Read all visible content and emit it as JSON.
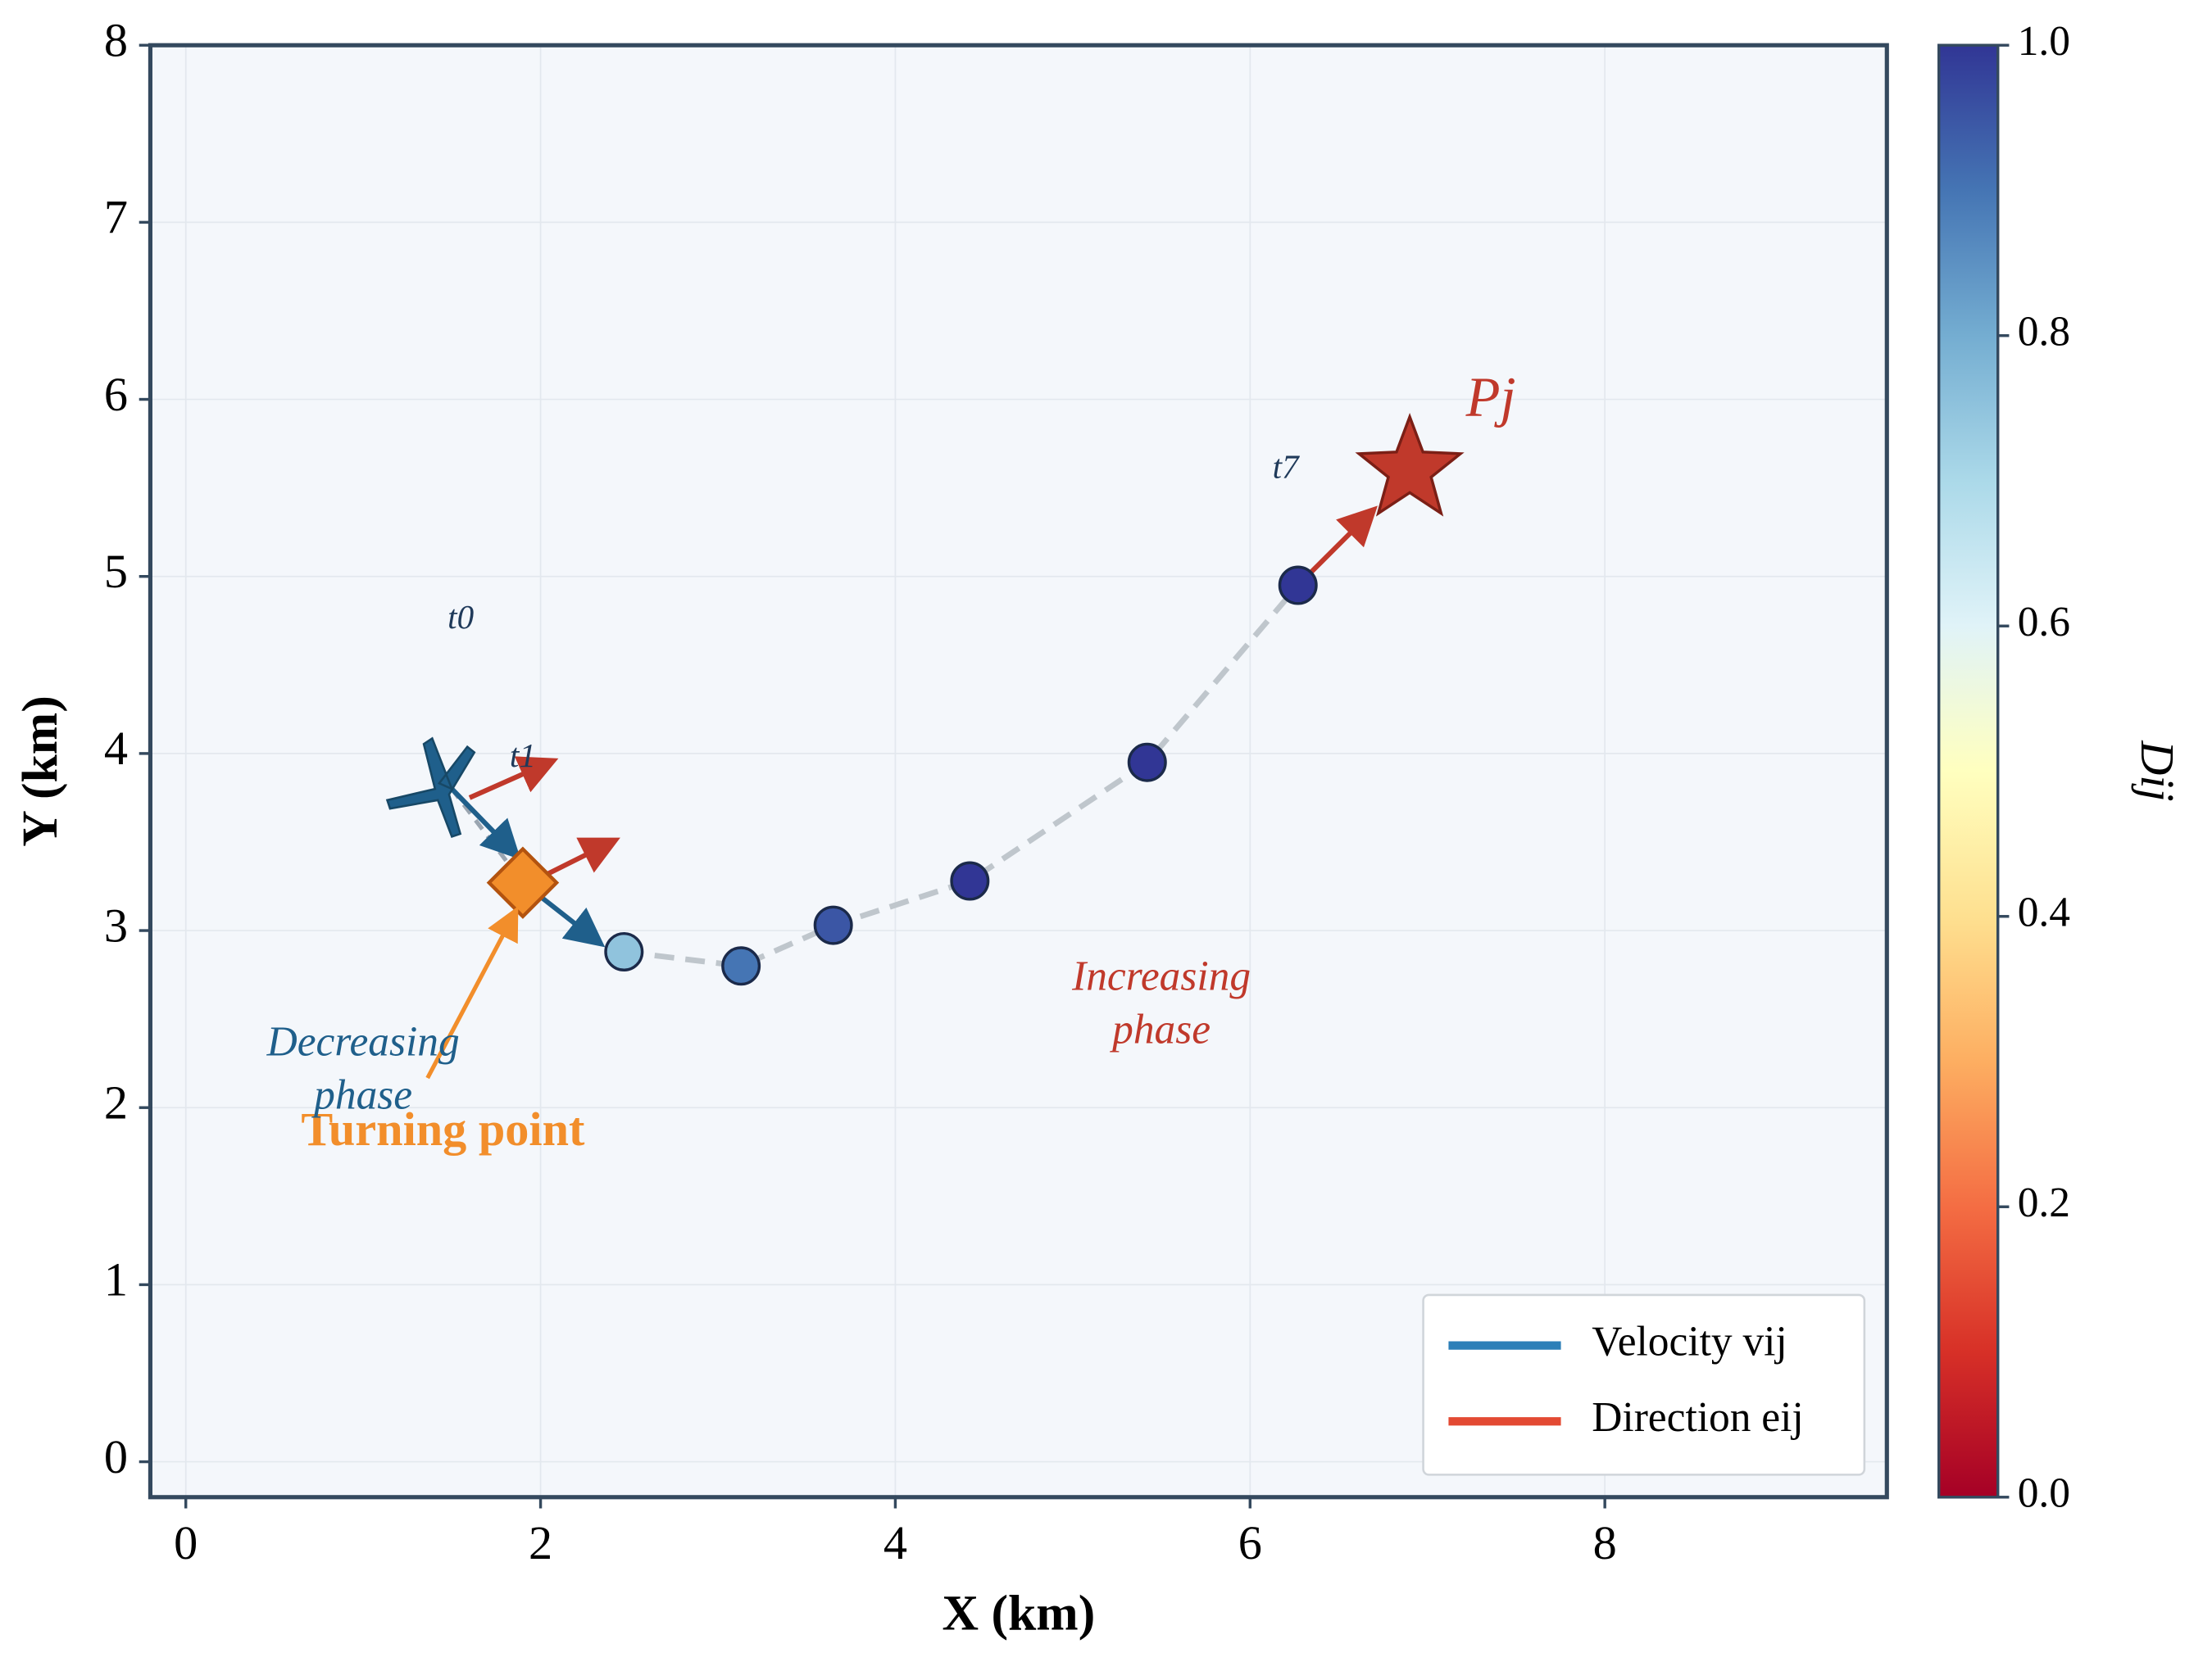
{
  "chart_data": {
    "type": "scatter",
    "xlabel": "X (km)",
    "ylabel": "Y (km)",
    "xlim": [
      -0.2,
      9.59
    ],
    "ylim": [
      -0.2,
      8
    ],
    "xticks": [
      0,
      2,
      4,
      6,
      8
    ],
    "yticks": [
      0,
      1,
      2,
      3,
      4,
      5,
      6,
      7,
      8
    ],
    "grid": true,
    "points": {
      "x": [
        2.47,
        3.13,
        3.65,
        4.42,
        5.42,
        6.27
      ],
      "y": [
        2.88,
        2.8,
        3.03,
        3.28,
        3.95,
        4.95
      ],
      "D": [
        0.75,
        0.9,
        0.95,
        1.0,
        1.0,
        1.0
      ]
    },
    "colormap": "RdYlBu",
    "clim": [
      0,
      1
    ],
    "cticks": [
      {
        "value": 0,
        "label": "0.0"
      },
      0.2,
      0.4,
      0.6,
      0.8,
      {
        "value": 1,
        "label": "1.0"
      }
    ],
    "colorbar_label": "Dij",
    "turning_point": {
      "x": 1.9,
      "y": 3.27,
      "label": "Turning point",
      "color": "#f28e2b",
      "label_x": 0.65,
      "label_y": 1.85
    },
    "target": {
      "x": 6.9,
      "y": 5.6,
      "label": "Pj",
      "color": "#c0392b"
    },
    "aircraft": {
      "x": 1.5,
      "y": 3.8,
      "color": "#1f5f8b"
    },
    "time_labels": [
      {
        "text": "t0",
        "x": 1.55,
        "y": 4.75
      },
      {
        "text": "t1",
        "x": 1.9,
        "y": 3.97
      },
      {
        "text": "t7",
        "x": 6.2,
        "y": 5.6
      }
    ],
    "annotations": [
      {
        "lines": [
          "Decreasing",
          "phase"
        ],
        "x": 1.0,
        "y": 2.35,
        "color": "#1f5f8b"
      },
      {
        "lines": [
          "Increasing",
          "phase"
        ],
        "x": 5.5,
        "y": 2.72,
        "color": "#c0392b"
      }
    ],
    "velocity_arrows": {
      "color": "#1f5f8b",
      "x": [
        1.5,
        1.9
      ],
      "y": [
        3.8,
        3.27
      ],
      "dx": [
        0.35,
        0.42
      ],
      "dy": [
        -0.36,
        -0.33
      ]
    },
    "direction_arrows": {
      "color": "#c0392b",
      "x": [
        1.6,
        2.0,
        6.3
      ],
      "y": [
        3.75,
        3.3,
        4.98
      ],
      "dx": [
        0.45,
        0.4,
        0.38
      ],
      "dy": [
        0.2,
        0.2,
        0.38
      ]
    },
    "legend_location": "lower right",
    "legend": [
      {
        "name": "Velocity vij",
        "color": "#2c7fb8"
      },
      {
        "name": "Direction eij",
        "color": "#e34a33"
      }
    ]
  }
}
